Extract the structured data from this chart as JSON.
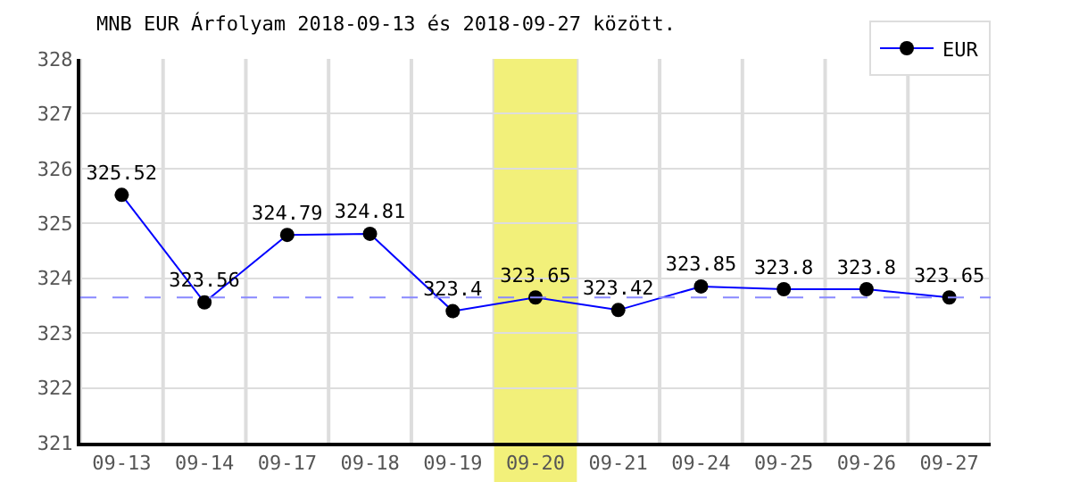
{
  "chart_data": {
    "type": "line",
    "title": "MNB EUR Árfolyam 2018-09-13 és 2018-09-27 között.",
    "categories": [
      "09-13",
      "09-14",
      "09-17",
      "09-18",
      "09-19",
      "09-20",
      "09-21",
      "09-24",
      "09-25",
      "09-26",
      "09-27"
    ],
    "series": [
      {
        "name": "EUR",
        "color": "#0000ff",
        "values": [
          325.52,
          323.56,
          324.79,
          324.81,
          323.4,
          323.65,
          323.42,
          323.85,
          323.8,
          323.8,
          323.65
        ]
      }
    ],
    "ylim": [
      321,
      328
    ],
    "yticks": [
      321,
      322,
      323,
      324,
      325,
      326,
      327,
      328
    ],
    "ref_lines": [
      {
        "axis": "y",
        "value": 323.65,
        "color": "#8888ff",
        "line_style": "dashed"
      }
    ],
    "bands": [
      {
        "axis": "x",
        "from": "09-20",
        "to": "09-20",
        "color": "#f2f07a"
      }
    ],
    "grid": true,
    "legend": "top right",
    "marker": "circle",
    "line_style": "solid",
    "data_labels": true
  }
}
